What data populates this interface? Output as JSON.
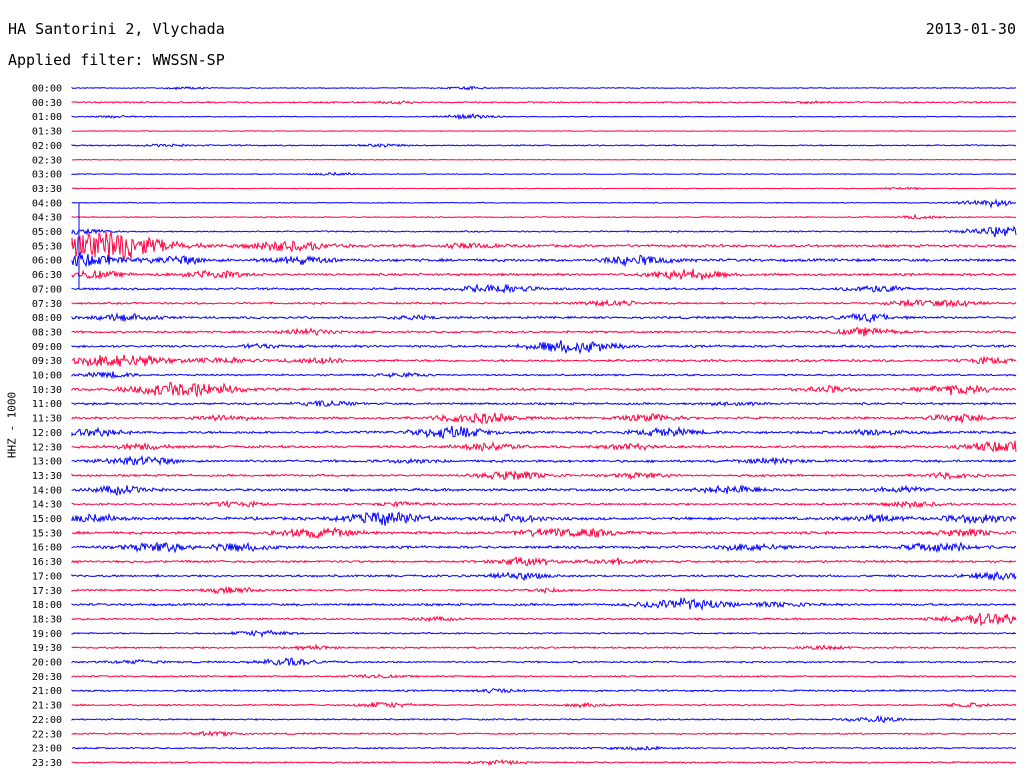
{
  "header": {
    "station": "HA Santorini 2, Vlychada",
    "date": "2013-01-30",
    "filter": "Applied filter: WWSSN-SP"
  },
  "chart_data": {
    "type": "line",
    "title": "HA Santorini 2, Vlychada",
    "date": "2013-01-30",
    "ylabel": "HHZ - 1000",
    "colors": [
      "#0000ff",
      "#ff0040"
    ],
    "rows": [
      {
        "time": "00:00",
        "amp": 0.5,
        "bursts": [
          [
            0.42,
            1.5
          ],
          [
            0.12,
            1.2
          ]
        ]
      },
      {
        "time": "00:30",
        "amp": 0.9,
        "bursts": [
          [
            0.35,
            1.2
          ],
          [
            0.78,
            1.2
          ]
        ]
      },
      {
        "time": "01:00",
        "amp": 0.5,
        "bursts": [
          [
            0.42,
            2.5
          ],
          [
            0.05,
            1.2
          ]
        ]
      },
      {
        "time": "01:30",
        "amp": 0.4,
        "bursts": []
      },
      {
        "time": "02:00",
        "amp": 0.8,
        "bursts": [
          [
            0.1,
            1.2
          ],
          [
            0.33,
            1.2
          ]
        ]
      },
      {
        "time": "02:30",
        "amp": 0.4,
        "bursts": []
      },
      {
        "time": "03:00",
        "amp": 0.5,
        "bursts": [
          [
            0.28,
            1.5
          ]
        ]
      },
      {
        "time": "03:30",
        "amp": 0.5,
        "bursts": [
          [
            0.88,
            1.2
          ]
        ]
      },
      {
        "time": "04:00",
        "amp": 0.5,
        "bursts": [
          [
            0.97,
            4
          ]
        ]
      },
      {
        "time": "04:30",
        "amp": 0.6,
        "bursts": [
          [
            0.9,
            2
          ]
        ]
      },
      {
        "time": "05:00",
        "amp": 0.8,
        "bursts": [
          [
            0.99,
            6
          ],
          [
            0.01,
            3
          ]
        ]
      },
      {
        "time": "05:30",
        "amp": 1.5,
        "bursts": [
          [
            0.02,
            9
          ],
          [
            0.06,
            10
          ],
          [
            0.23,
            6
          ],
          [
            0.42,
            3
          ]
        ]
      },
      {
        "time": "06:00",
        "amp": 1.6,
        "bursts": [
          [
            0.01,
            7
          ],
          [
            0.11,
            4
          ],
          [
            0.24,
            4
          ],
          [
            0.6,
            5
          ]
        ]
      },
      {
        "time": "06:30",
        "amp": 1.4,
        "bursts": [
          [
            0.15,
            4
          ],
          [
            0.65,
            6
          ],
          [
            0.02,
            4
          ]
        ]
      },
      {
        "time": "07:00",
        "amp": 1.2,
        "bursts": [
          [
            0.45,
            5
          ],
          [
            0.85,
            4
          ]
        ]
      },
      {
        "time": "07:30",
        "amp": 1.1,
        "bursts": [
          [
            0.57,
            3
          ],
          [
            0.89,
            3
          ],
          [
            0.94,
            3
          ]
        ]
      },
      {
        "time": "08:00",
        "amp": 1.3,
        "bursts": [
          [
            0.06,
            4
          ],
          [
            0.84,
            4
          ],
          [
            0.36,
            2
          ]
        ]
      },
      {
        "time": "08:30",
        "amp": 1.2,
        "bursts": [
          [
            0.25,
            3
          ],
          [
            0.84,
            4
          ]
        ]
      },
      {
        "time": "09:00",
        "amp": 1.4,
        "bursts": [
          [
            0.53,
            7
          ],
          [
            0.2,
            2
          ]
        ]
      },
      {
        "time": "09:30",
        "amp": 1.4,
        "bursts": [
          [
            0.05,
            8
          ],
          [
            0.16,
            3
          ],
          [
            0.26,
            3
          ],
          [
            0.97,
            3
          ]
        ]
      },
      {
        "time": "10:00",
        "amp": 1.0,
        "bursts": [
          [
            0.04,
            3
          ],
          [
            0.35,
            2
          ]
        ]
      },
      {
        "time": "10:30",
        "amp": 1.4,
        "bursts": [
          [
            0.09,
            5
          ],
          [
            0.14,
            6
          ],
          [
            0.8,
            3
          ],
          [
            0.94,
            5
          ]
        ]
      },
      {
        "time": "11:00",
        "amp": 1.2,
        "bursts": [
          [
            0.27,
            3
          ],
          [
            0.7,
            2
          ]
        ]
      },
      {
        "time": "11:30",
        "amp": 1.3,
        "bursts": [
          [
            0.16,
            3
          ],
          [
            0.43,
            6
          ],
          [
            0.61,
            4
          ],
          [
            0.94,
            4
          ]
        ]
      },
      {
        "time": "12:00",
        "amp": 1.5,
        "bursts": [
          [
            0.02,
            4
          ],
          [
            0.4,
            6
          ],
          [
            0.63,
            4
          ],
          [
            0.85,
            3
          ]
        ]
      },
      {
        "time": "12:30",
        "amp": 1.4,
        "bursts": [
          [
            0.07,
            3
          ],
          [
            0.44,
            4
          ],
          [
            0.59,
            3
          ],
          [
            0.99,
            6
          ]
        ]
      },
      {
        "time": "13:00",
        "amp": 1.4,
        "bursts": [
          [
            0.07,
            5
          ],
          [
            0.36,
            2
          ],
          [
            0.74,
            3
          ]
        ]
      },
      {
        "time": "13:30",
        "amp": 1.2,
        "bursts": [
          [
            0.47,
            5
          ],
          [
            0.6,
            3
          ],
          [
            0.93,
            3
          ]
        ]
      },
      {
        "time": "14:00",
        "amp": 1.5,
        "bursts": [
          [
            0.05,
            4
          ],
          [
            0.7,
            4
          ],
          [
            0.88,
            3
          ]
        ]
      },
      {
        "time": "14:30",
        "amp": 1.2,
        "bursts": [
          [
            0.17,
            3
          ],
          [
            0.35,
            2
          ],
          [
            0.89,
            3
          ]
        ]
      },
      {
        "time": "15:00",
        "amp": 1.6,
        "bursts": [
          [
            0.02,
            4
          ],
          [
            0.33,
            7
          ],
          [
            0.47,
            4
          ],
          [
            0.85,
            4
          ],
          [
            0.96,
            5
          ]
        ]
      },
      {
        "time": "15:30",
        "amp": 1.5,
        "bursts": [
          [
            0.26,
            6
          ],
          [
            0.5,
            4
          ],
          [
            0.55,
            4
          ],
          [
            0.95,
            4
          ]
        ]
      },
      {
        "time": "16:00",
        "amp": 1.5,
        "bursts": [
          [
            0.09,
            5
          ],
          [
            0.18,
            4
          ],
          [
            0.72,
            4
          ],
          [
            0.92,
            5
          ]
        ]
      },
      {
        "time": "16:30",
        "amp": 1.3,
        "bursts": [
          [
            0.48,
            4
          ],
          [
            0.57,
            3
          ]
        ]
      },
      {
        "time": "17:00",
        "amp": 1.2,
        "bursts": [
          [
            0.47,
            4
          ],
          [
            0.98,
            4
          ]
        ]
      },
      {
        "time": "17:30",
        "amp": 1.1,
        "bursts": [
          [
            0.17,
            3
          ],
          [
            0.5,
            2
          ]
        ]
      },
      {
        "time": "18:00",
        "amp": 1.3,
        "bursts": [
          [
            0.65,
            7
          ],
          [
            0.75,
            3
          ]
        ]
      },
      {
        "time": "18:30",
        "amp": 1.1,
        "bursts": [
          [
            0.97,
            7
          ],
          [
            0.38,
            2
          ]
        ]
      },
      {
        "time": "19:00",
        "amp": 0.9,
        "bursts": [
          [
            0.2,
            3
          ]
        ]
      },
      {
        "time": "19:30",
        "amp": 1.0,
        "bursts": [
          [
            0.25,
            2
          ],
          [
            0.8,
            2
          ]
        ]
      },
      {
        "time": "20:00",
        "amp": 1.0,
        "bursts": [
          [
            0.23,
            4
          ],
          [
            0.07,
            2
          ]
        ]
      },
      {
        "time": "20:30",
        "amp": 0.9,
        "bursts": [
          [
            0.32,
            2
          ]
        ]
      },
      {
        "time": "21:00",
        "amp": 1.0,
        "bursts": [
          [
            0.45,
            2
          ]
        ]
      },
      {
        "time": "21:30",
        "amp": 0.9,
        "bursts": [
          [
            0.33,
            3
          ],
          [
            0.55,
            2
          ],
          [
            0.95,
            2
          ]
        ]
      },
      {
        "time": "22:00",
        "amp": 0.9,
        "bursts": [
          [
            0.85,
            3
          ]
        ]
      },
      {
        "time": "22:30",
        "amp": 0.9,
        "bursts": [
          [
            0.15,
            2
          ]
        ]
      },
      {
        "time": "23:00",
        "amp": 0.9,
        "bursts": [
          [
            0.6,
            2
          ]
        ]
      },
      {
        "time": "23:30",
        "amp": 0.9,
        "bursts": [
          [
            0.45,
            2
          ]
        ]
      }
    ]
  }
}
